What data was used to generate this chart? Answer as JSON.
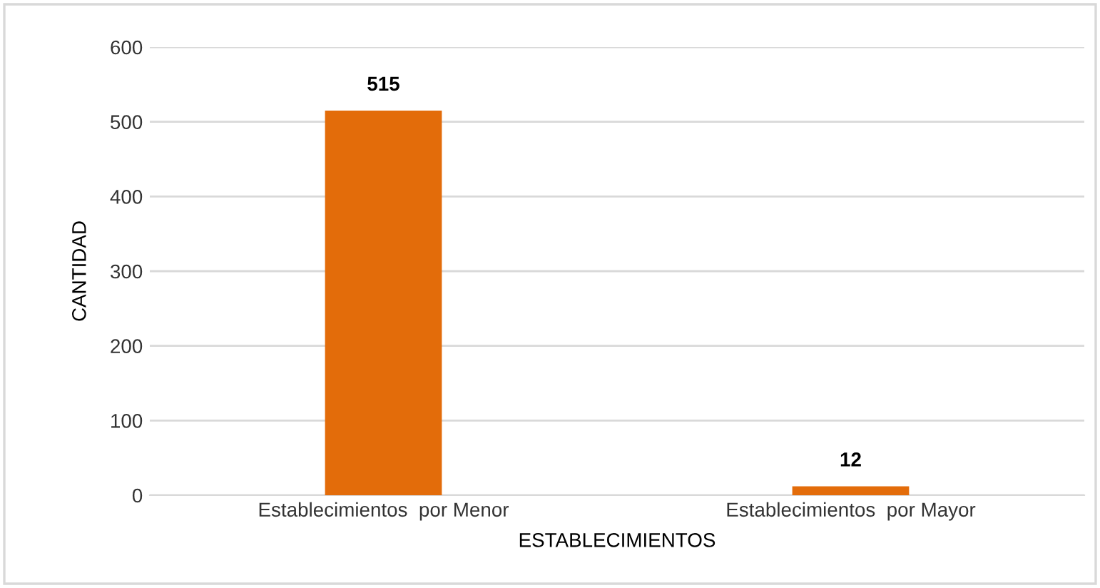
{
  "chart_data": {
    "type": "bar",
    "categories": [
      "Establecimientos  por Menor",
      "Establecimientos  por Mayor"
    ],
    "values": [
      515,
      12
    ],
    "color": "#e36c0a",
    "xlabel": "ESTABLECIMIENTOS",
    "ylabel": "CANTIDAD",
    "ylim": [
      0,
      600
    ],
    "yticks": [
      0,
      100,
      200,
      300,
      400,
      500,
      600
    ],
    "grid": "y",
    "data_labels": true
  }
}
